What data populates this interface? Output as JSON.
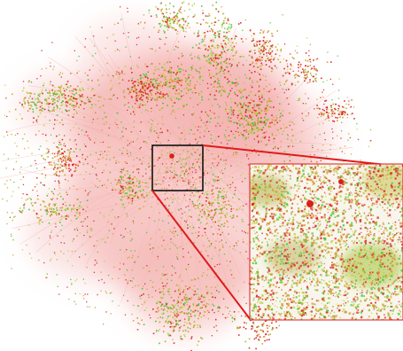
{
  "figure": {
    "background": "#ffffff",
    "colors": {
      "edge_haze": "#f4b0ae",
      "node_red": "#d81e1e",
      "node_orange": "#d9962a",
      "node_olive": "#a7a72a",
      "node_green": "#35c933",
      "node_lime": "#b7d43a",
      "zoom_box": "#111111",
      "zoom_lines": "#e01a1a",
      "inset_border": "#e01a1a"
    }
  }
}
